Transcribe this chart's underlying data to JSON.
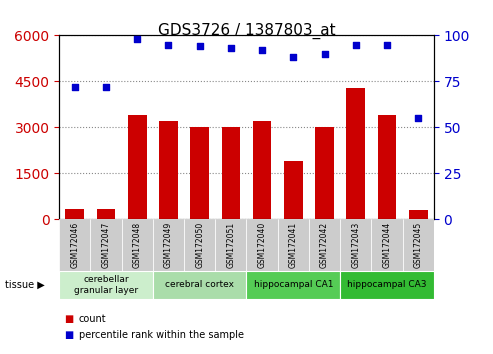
{
  "title": "GDS3726 / 1387803_at",
  "samples": [
    "GSM172046",
    "GSM172047",
    "GSM172048",
    "GSM172049",
    "GSM172050",
    "GSM172051",
    "GSM172040",
    "GSM172041",
    "GSM172042",
    "GSM172043",
    "GSM172044",
    "GSM172045"
  ],
  "counts": [
    350,
    350,
    3400,
    3200,
    3000,
    3000,
    3200,
    1900,
    3000,
    4300,
    3400,
    300
  ],
  "percentiles": [
    72,
    72,
    98,
    95,
    94,
    93,
    92,
    88,
    90,
    95,
    95,
    55
  ],
  "ylim_left": [
    0,
    6000
  ],
  "ylim_right": [
    0,
    100
  ],
  "yticks_left": [
    0,
    1500,
    3000,
    4500,
    6000
  ],
  "yticks_right": [
    0,
    25,
    50,
    75,
    100
  ],
  "bar_color": "#cc0000",
  "dot_color": "#0000cc",
  "tissue_groups": [
    {
      "label": "cerebellar\ngranular layer",
      "start": 0,
      "end": 2,
      "color": "#cceecc"
    },
    {
      "label": "cerebral cortex",
      "start": 3,
      "end": 5,
      "color": "#aaddaa"
    },
    {
      "label": "hippocampal CA1",
      "start": 6,
      "end": 8,
      "color": "#55cc55"
    },
    {
      "label": "hippocampal CA3",
      "start": 9,
      "end": 11,
      "color": "#33bb33"
    }
  ],
  "tissue_label": "tissue",
  "legend_count_label": "count",
  "legend_pct_label": "percentile rank within the sample",
  "bg_color": "#ffffff",
  "grid_color": "#888888",
  "tick_label_bg": "#cccccc"
}
